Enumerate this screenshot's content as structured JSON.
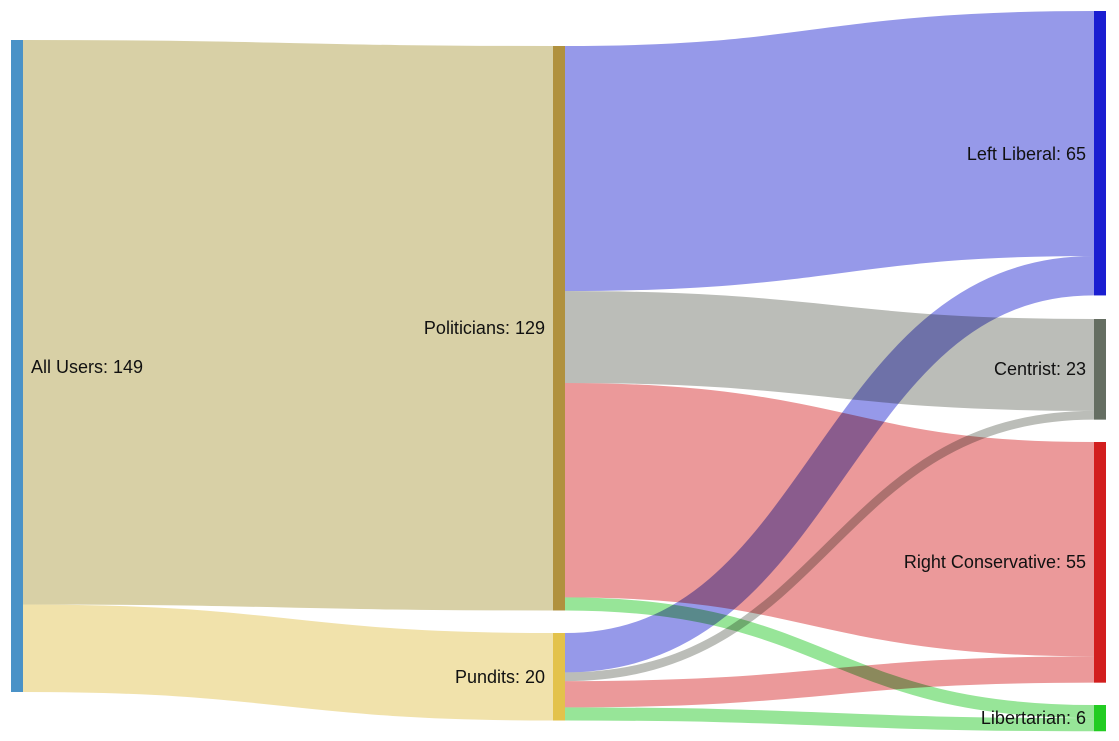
{
  "chart_data": {
    "type": "sankey",
    "nodes": [
      {
        "id": "all",
        "label": "All Users: 149",
        "value": 149,
        "color": "#4a92c7"
      },
      {
        "id": "pol",
        "label": "Politicians: 129",
        "value": 129,
        "color": "#b0913e"
      },
      {
        "id": "pun",
        "label": "Pundits: 20",
        "value": 20,
        "color": "#e3c24b"
      },
      {
        "id": "left",
        "label": "Left Liberal: 65",
        "value": 65,
        "color": "#1a1ed1"
      },
      {
        "id": "cen",
        "label": "Centrist: 23",
        "value": 23,
        "color": "#656e62"
      },
      {
        "id": "right",
        "label": "Right Conservative: 55",
        "value": 55,
        "color": "#d21e1e"
      },
      {
        "id": "lib",
        "label": "Libertarian: 6",
        "value": 6,
        "color": "#22cc22"
      }
    ],
    "links": [
      {
        "source": "all",
        "target": "pol",
        "value": 129,
        "color": "#d8d0a6"
      },
      {
        "source": "all",
        "target": "pun",
        "value": 20,
        "color": "#f1e2ab"
      },
      {
        "source": "pol",
        "target": "left",
        "value": 56,
        "color": "#9699e9"
      },
      {
        "source": "pol",
        "target": "cen",
        "value": 21,
        "color": "#bbbdb8"
      },
      {
        "source": "pol",
        "target": "right",
        "value": 49,
        "color": "#eb999a"
      },
      {
        "source": "pol",
        "target": "lib",
        "value": 3,
        "color": "#97e598"
      },
      {
        "source": "pun",
        "target": "left",
        "value": 9,
        "color": "#9699e9"
      },
      {
        "source": "pun",
        "target": "cen",
        "value": 2,
        "color": "#bbbdb8"
      },
      {
        "source": "pun",
        "target": "right",
        "value": 6,
        "color": "#eb999a"
      },
      {
        "source": "pun",
        "target": "lib",
        "value": 3,
        "color": "#97e598"
      }
    ]
  }
}
